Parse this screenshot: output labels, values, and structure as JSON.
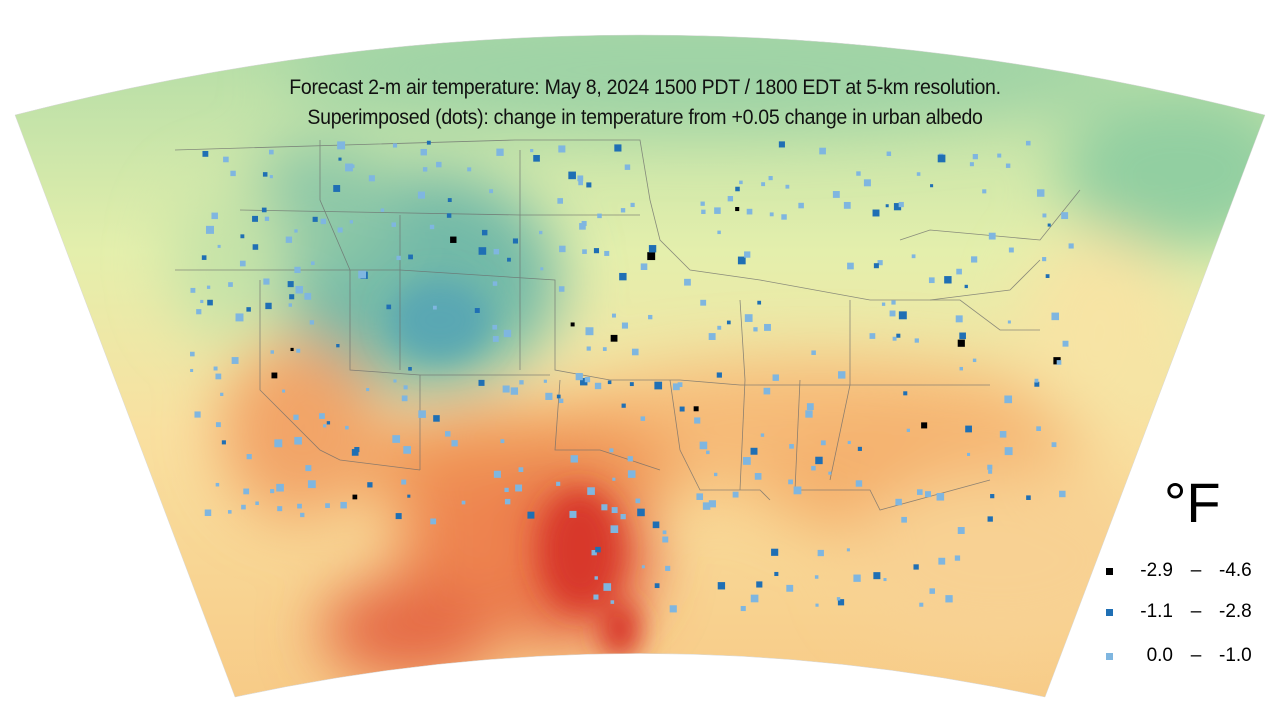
{
  "title": {
    "line1": "Forecast 2-m air temperature: May 8, 2024 1500 PDT / 1800 EDT at 5-km resolution.",
    "line2": "Superimposed (dots): change in temperature from +0.05 change in urban albedo"
  },
  "legend": {
    "unit": "°F",
    "items": [
      {
        "low": "-2.9",
        "sep": "–",
        "high": "-4.6",
        "color": "#000000"
      },
      {
        "low": "-1.1",
        "sep": "–",
        "high": "-2.8",
        "color": "#1f6fb4"
      },
      {
        "low": "0.0",
        "sep": "–",
        "high": "-1.0",
        "color": "#7fb6e0"
      }
    ]
  },
  "colors": {
    "cool": "#6fb8a6",
    "mild": "#e9f0a8",
    "warm": "#f4b36b",
    "hot": "#d9362a"
  }
}
